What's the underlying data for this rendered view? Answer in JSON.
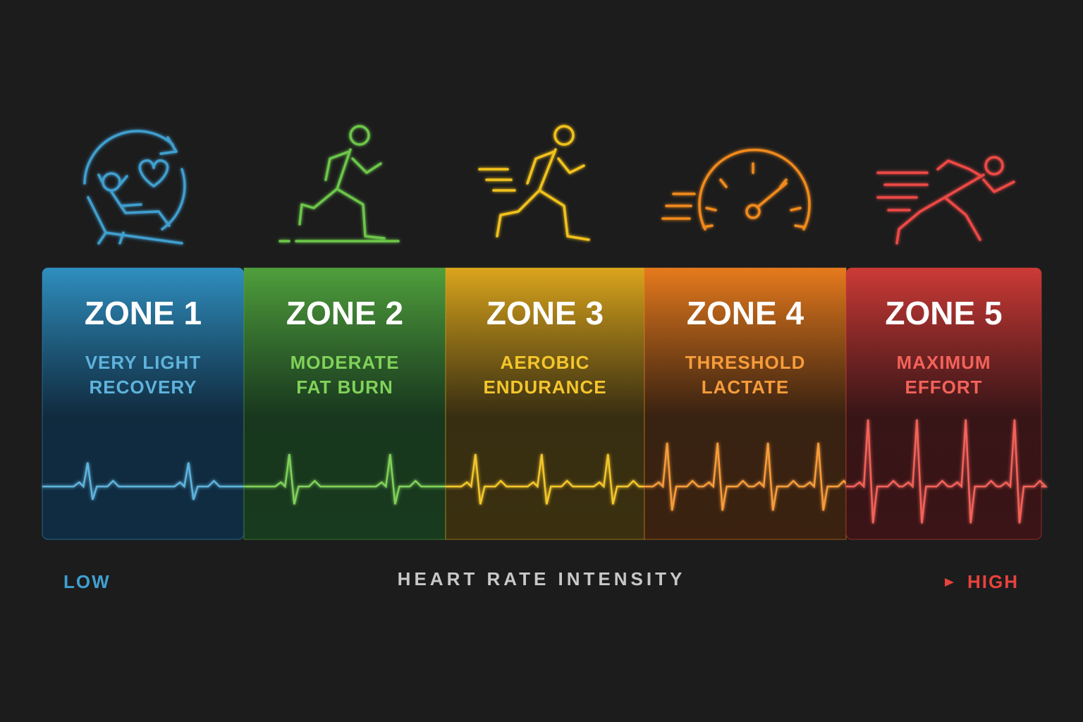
{
  "zones": [
    {
      "title": "ZONE 1",
      "description": [
        "VERY LIGHT",
        "RECOVERY"
      ]
    },
    {
      "title": "ZONE 2",
      "description": [
        "MODERATE",
        "FAT BURN"
      ]
    },
    {
      "title": "ZONE 3",
      "description": [
        "AEROBIC",
        "ENDURANCE"
      ]
    },
    {
      "title": "ZONE 4",
      "description": [
        "THRESHOLD",
        "LACTATE"
      ]
    },
    {
      "title": "ZONE 5",
      "description": [
        "MAXIMUM",
        "EFFORT"
      ]
    }
  ],
  "scale": {
    "low": "LOW",
    "label": "HEART RATE INTENSITY",
    "high": "HIGH"
  }
}
